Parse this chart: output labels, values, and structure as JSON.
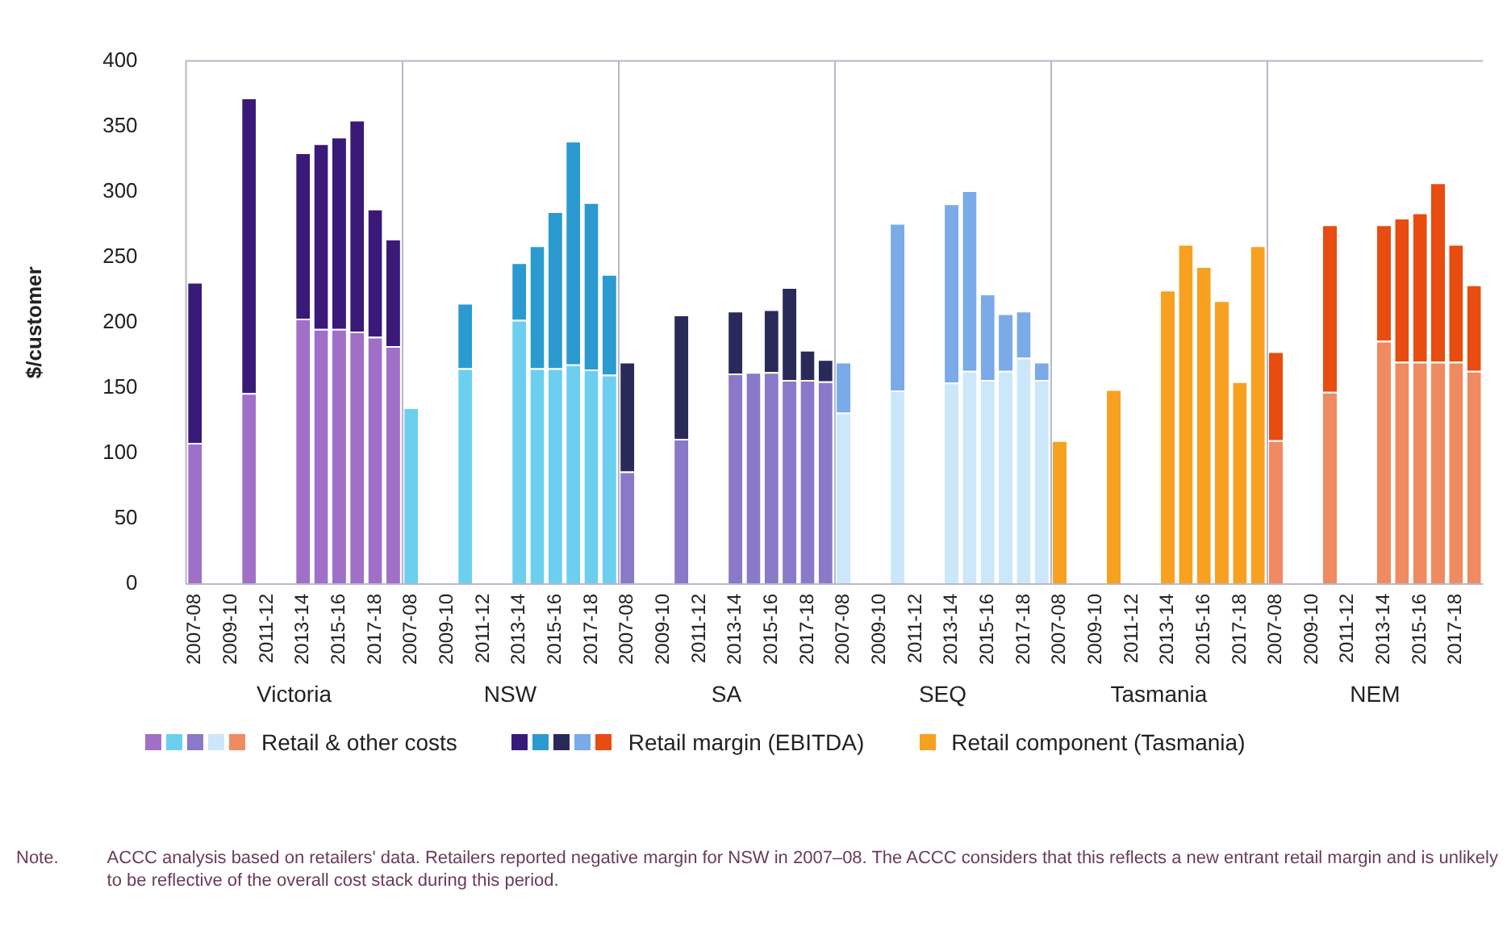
{
  "chart_data": {
    "type": "bar",
    "stacked": true,
    "ylabel": "$/customer",
    "ylim": [
      0,
      400
    ],
    "yticks": [
      0,
      50,
      100,
      150,
      200,
      250,
      300,
      350,
      400
    ],
    "grid": false,
    "legend": "bottom",
    "categories": [
      "2007-08",
      null,
      "2009-10",
      null,
      "2011-12",
      null,
      "2013-14",
      null,
      "2015-16",
      null,
      "2017-18",
      null,
      "2007-08",
      null,
      "2009-10",
      null,
      "2011-12",
      null,
      "2013-14",
      null,
      "2015-16",
      null,
      "2017-18",
      null,
      "2007-08",
      null,
      "2009-10",
      null,
      "2011-12",
      null,
      "2013-14",
      null,
      "2015-16",
      null,
      "2017-18",
      null,
      "2007-08",
      null,
      "2009-10",
      null,
      "2011-12",
      null,
      "2013-14",
      null,
      "2015-16",
      null,
      "2017-18",
      null,
      "2007-08",
      null,
      "2009-10",
      null,
      "2011-12",
      null,
      "2013-14",
      null,
      "2015-16",
      null,
      "2017-18",
      null,
      "2007-08",
      null,
      "2009-10",
      null,
      "2011-12",
      null,
      "2013-14",
      null,
      "2015-16",
      null,
      "2017-18",
      null
    ],
    "series": [
      {
        "name": "Retail & other costs",
        "values": [
          108,
          null,
          null,
          146,
          null,
          null,
          203,
          195,
          195,
          193,
          189,
          182,
          135,
          null,
          null,
          165,
          null,
          null,
          202,
          165,
          165,
          168,
          164,
          160,
          86,
          null,
          null,
          111,
          null,
          null,
          161,
          162,
          162,
          156,
          156,
          155,
          131,
          null,
          null,
          148,
          null,
          null,
          154,
          163,
          156,
          163,
          173,
          156,
          null,
          null,
          null,
          null,
          null,
          null,
          null,
          null,
          null,
          null,
          null,
          null,
          110,
          null,
          null,
          147,
          null,
          null,
          186,
          170,
          170,
          170,
          170,
          163
        ],
        "colors": [
          "#a070c8",
          null,
          null,
          "#a070c8",
          null,
          null,
          "#a070c8",
          "#a070c8",
          "#a070c8",
          "#a070c8",
          "#a070c8",
          "#a070c8",
          "#6ccff0",
          null,
          null,
          "#6ccff0",
          null,
          null,
          "#6ccff0",
          "#6ccff0",
          "#6ccff0",
          "#6ccff0",
          "#6ccff0",
          "#6ccff0",
          "#8a78c8",
          null,
          null,
          "#8a78c8",
          null,
          null,
          "#8a78c8",
          "#8a78c8",
          "#8a78c8",
          "#8a78c8",
          "#8a78c8",
          "#8a78c8",
          "#cce6fa",
          null,
          null,
          "#cce6fa",
          null,
          null,
          "#cce6fa",
          "#cce6fa",
          "#cce6fa",
          "#cce6fa",
          "#cce6fa",
          "#cce6fa",
          null,
          null,
          null,
          null,
          null,
          null,
          null,
          null,
          null,
          null,
          null,
          null,
          "#f08a60",
          null,
          null,
          "#f08a60",
          null,
          null,
          "#f08a60",
          "#f08a60",
          "#f08a60",
          "#f08a60",
          "#f08a60",
          "#f08a60"
        ]
      },
      {
        "name": "Retail margin (EBITDA)",
        "values": [
          123,
          null,
          null,
          226,
          null,
          null,
          127,
          142,
          147,
          162,
          98,
          82,
          null,
          null,
          null,
          50,
          null,
          null,
          44,
          94,
          120,
          171,
          128,
          77,
          84,
          null,
          null,
          95,
          null,
          null,
          48,
          null,
          48,
          71,
          23,
          17,
          39,
          null,
          null,
          128,
          null,
          null,
          137,
          138,
          66,
          44,
          36,
          14,
          null,
          null,
          null,
          null,
          null,
          null,
          null,
          null,
          null,
          null,
          null,
          null,
          68,
          null,
          null,
          128,
          null,
          null,
          89,
          110,
          114,
          137,
          90,
          66
        ],
        "colors": [
          "#3a1a78",
          null,
          null,
          "#3a1a78",
          null,
          null,
          "#3a1a78",
          "#3a1a78",
          "#3a1a78",
          "#3a1a78",
          "#3a1a78",
          "#3a1a78",
          null,
          null,
          null,
          "#2a9ad0",
          null,
          null,
          "#2a9ad0",
          "#2a9ad0",
          "#2a9ad0",
          "#2a9ad0",
          "#2a9ad0",
          "#2a9ad0",
          "#2a2a5a",
          null,
          null,
          "#2a2a5a",
          null,
          null,
          "#2a2a5a",
          null,
          "#2a2a5a",
          "#2a2a5a",
          "#2a2a5a",
          "#2a2a5a",
          "#7aaae8",
          null,
          null,
          "#7aaae8",
          null,
          null,
          "#7aaae8",
          "#7aaae8",
          "#7aaae8",
          "#7aaae8",
          "#7aaae8",
          "#7aaae8",
          null,
          null,
          null,
          null,
          null,
          null,
          null,
          null,
          null,
          null,
          null,
          null,
          "#e84c10",
          null,
          null,
          "#e84c10",
          null,
          null,
          "#e84c10",
          "#e84c10",
          "#e84c10",
          "#e84c10",
          "#e84c10",
          "#e84c10"
        ]
      },
      {
        "name": "Retail component (Tasmania)",
        "values": [
          null,
          null,
          null,
          null,
          null,
          null,
          null,
          null,
          null,
          null,
          null,
          null,
          null,
          null,
          null,
          null,
          null,
          null,
          null,
          null,
          null,
          null,
          null,
          null,
          null,
          null,
          null,
          null,
          null,
          null,
          null,
          null,
          null,
          null,
          null,
          null,
          null,
          null,
          null,
          null,
          null,
          null,
          null,
          null,
          null,
          null,
          null,
          null,
          110,
          null,
          null,
          149,
          null,
          null,
          225,
          260,
          243,
          217,
          155,
          259,
          null,
          null,
          null,
          null,
          null,
          null,
          null,
          null,
          null,
          null,
          null,
          null
        ],
        "color": "#f8a020"
      }
    ],
    "annotations": [
      "Victoria",
      "NSW",
      "SA",
      "SEQ",
      "Tasmania",
      "NEM",
      "Note.   ACCC analysis based on retailers' data. Retailers reported negative margin for NSW in 2007–08. The ACCC considers that this reflects a new entrant retail margin and is unlikely to be reflective of the overall cost stack during this period."
    ]
  }
}
